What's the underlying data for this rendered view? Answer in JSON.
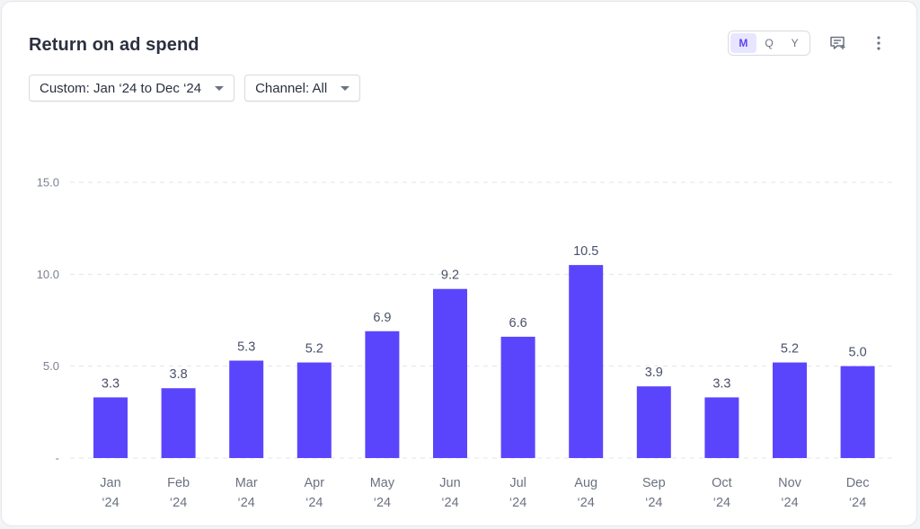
{
  "header": {
    "title": "Return on ad spend"
  },
  "filters": {
    "date_range": "Custom: Jan ‘24 to Dec ‘24",
    "channel": "Channel: All"
  },
  "granularity": {
    "options": [
      "M",
      "Q",
      "Y"
    ],
    "selected": "M"
  },
  "icons": {
    "comment": "comment-add-icon",
    "more": "more-vertical-icon",
    "dropdown": "chevron-down-icon"
  },
  "colors": {
    "bar": "#5b45fc",
    "accent": "#5b45f5"
  },
  "chart_data": {
    "type": "bar",
    "title": "Return on ad spend",
    "xlabel": "",
    "ylabel": "",
    "categories": [
      [
        "Jan",
        "‘24"
      ],
      [
        "Feb",
        "‘24"
      ],
      [
        "Mar",
        "‘24"
      ],
      [
        "Apr",
        "‘24"
      ],
      [
        "May",
        "‘24"
      ],
      [
        "Jun",
        "‘24"
      ],
      [
        "Jul",
        "‘24"
      ],
      [
        "Aug",
        "‘24"
      ],
      [
        "Sep",
        "‘24"
      ],
      [
        "Oct",
        "‘24"
      ],
      [
        "Nov",
        "‘24"
      ],
      [
        "Dec",
        "‘24"
      ]
    ],
    "values": [
      3.3,
      3.8,
      5.3,
      5.2,
      6.9,
      9.2,
      6.6,
      10.5,
      3.9,
      3.3,
      5.2,
      5.0
    ],
    "value_labels": [
      "3.3",
      "3.8",
      "5.3",
      "5.2",
      "6.9",
      "9.2",
      "6.6",
      "10.5",
      "3.9",
      "3.3",
      "5.2",
      "5.0"
    ],
    "ylim": [
      0,
      15
    ],
    "yticks": [
      0,
      5,
      10,
      15
    ],
    "ytick_labels": [
      "-",
      "5.0",
      "10.0",
      "15.0"
    ],
    "grid": true,
    "legend": "none"
  }
}
